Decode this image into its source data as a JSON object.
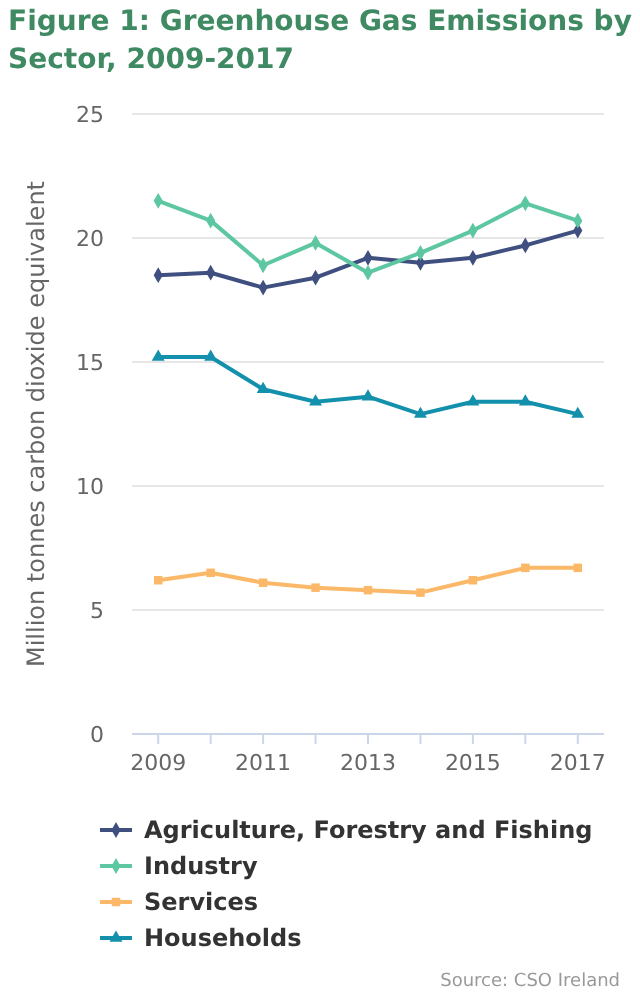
{
  "chart_data": {
    "type": "line",
    "title": "Figure 1: Greenhouse Gas Emissions by Sector, 2009-2017",
    "ylabel": "Million tonnes carbon dioxide equivalent",
    "x": [
      2009,
      2010,
      2011,
      2012,
      2013,
      2014,
      2015,
      2016,
      2017
    ],
    "xlim": [
      2008.5,
      2017.5
    ],
    "xticks": [
      2009,
      2011,
      2013,
      2015,
      2017
    ],
    "ylim": [
      0,
      25
    ],
    "yticks": [
      0,
      5,
      10,
      15,
      20,
      25
    ],
    "grid": "y",
    "legend": "bottom",
    "series": [
      {
        "name": "Agriculture, Forestry and Fishing",
        "color": "#3f4f7f",
        "marker": "diamond",
        "values": [
          18.5,
          18.6,
          18.0,
          18.4,
          19.2,
          19.0,
          19.2,
          19.7,
          20.3
        ]
      },
      {
        "name": "Industry",
        "color": "#5cc7a0",
        "marker": "diamond",
        "values": [
          21.5,
          20.7,
          18.9,
          19.8,
          18.6,
          19.4,
          20.3,
          21.4,
          20.7
        ]
      },
      {
        "name": "Services",
        "color": "#fbb868",
        "marker": "square",
        "values": [
          6.2,
          6.5,
          6.1,
          5.9,
          5.8,
          5.7,
          6.2,
          6.7,
          6.7
        ]
      },
      {
        "name": "Households",
        "color": "#1390ac",
        "marker": "triangle",
        "values": [
          15.2,
          15.2,
          13.9,
          13.4,
          13.6,
          12.9,
          13.4,
          13.4,
          12.9
        ]
      }
    ],
    "annotations": [
      "Source: CSO Ireland"
    ]
  }
}
